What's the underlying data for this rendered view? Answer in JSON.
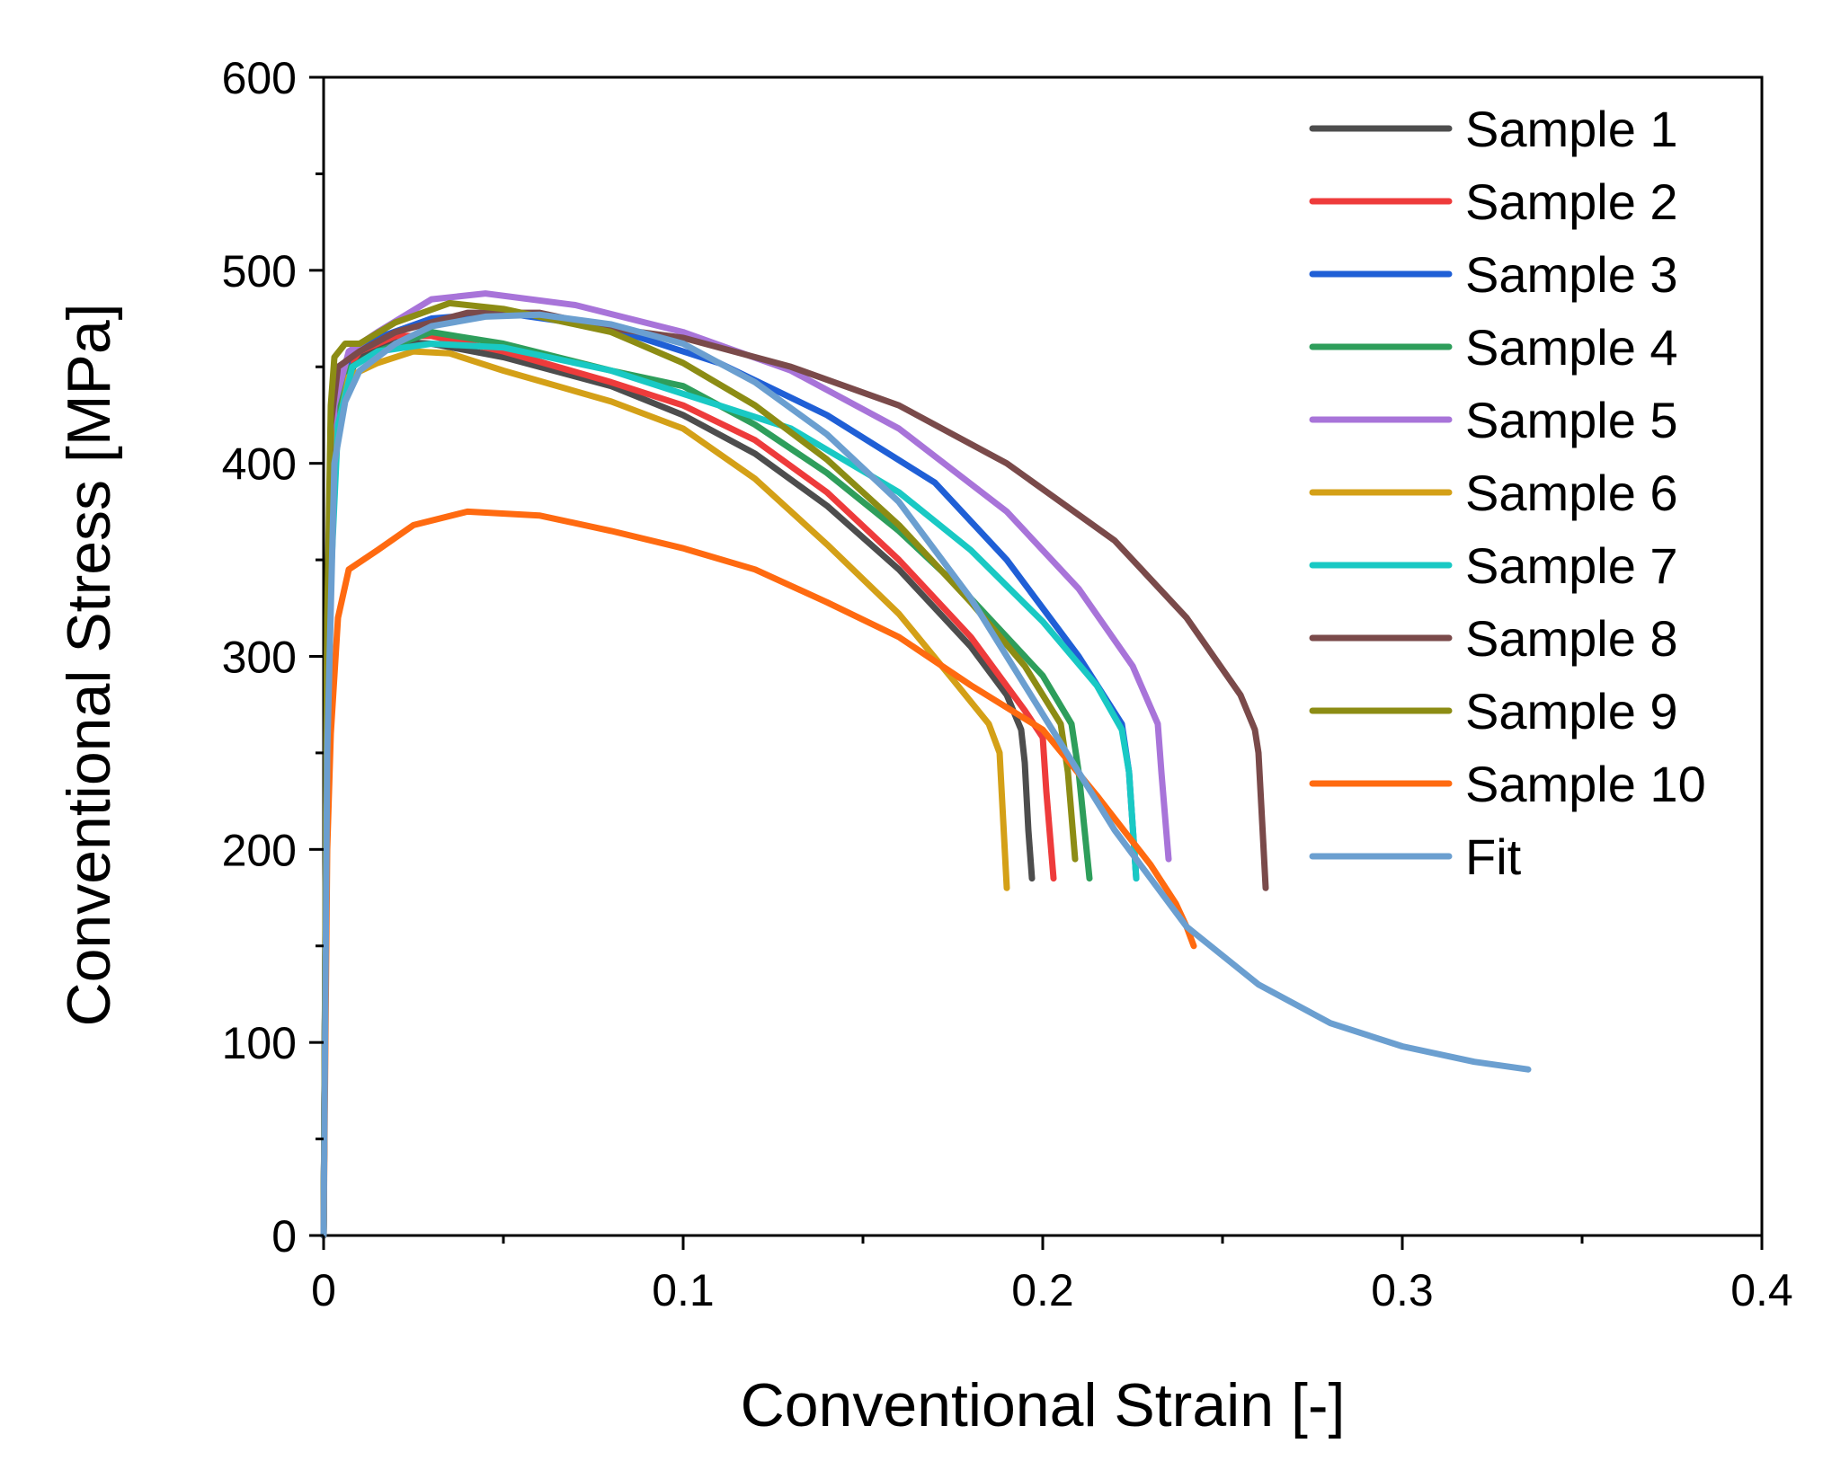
{
  "chart_data": {
    "type": "line",
    "title": "",
    "xlabel": "Conventional Strain [-]",
    "ylabel": "Conventional Stress [MPa]",
    "xlim": [
      0,
      0.4
    ],
    "ylim": [
      0,
      600
    ],
    "xticks": [
      0,
      0.1,
      0.2,
      0.3,
      0.4
    ],
    "xtick_labels": [
      "0",
      "0.1",
      "0.2",
      "0.3",
      "0.4"
    ],
    "yticks": [
      0,
      100,
      200,
      300,
      400,
      500,
      600
    ],
    "ytick_labels": [
      "0",
      "100",
      "200",
      "300",
      "400",
      "500",
      "600"
    ],
    "grid": false,
    "legend_position": "top-right",
    "series": [
      {
        "name": "Sample 1",
        "color": "#4d4d4d",
        "points": [
          [
            0,
            0
          ],
          [
            0.001,
            300
          ],
          [
            0.002,
            400
          ],
          [
            0.005,
            440
          ],
          [
            0.01,
            455
          ],
          [
            0.02,
            463
          ],
          [
            0.03,
            462
          ],
          [
            0.05,
            455
          ],
          [
            0.08,
            440
          ],
          [
            0.1,
            425
          ],
          [
            0.12,
            405
          ],
          [
            0.14,
            378
          ],
          [
            0.16,
            345
          ],
          [
            0.18,
            305
          ],
          [
            0.19,
            280
          ],
          [
            0.194,
            262
          ],
          [
            0.195,
            245
          ],
          [
            0.196,
            210
          ],
          [
            0.197,
            185
          ]
        ]
      },
      {
        "name": "Sample 2",
        "color": "#ee3b3b",
        "points": [
          [
            0,
            0
          ],
          [
            0.001,
            290
          ],
          [
            0.002,
            380
          ],
          [
            0.005,
            445
          ],
          [
            0.01,
            458
          ],
          [
            0.02,
            466
          ],
          [
            0.03,
            466
          ],
          [
            0.05,
            458
          ],
          [
            0.08,
            442
          ],
          [
            0.1,
            430
          ],
          [
            0.12,
            412
          ],
          [
            0.14,
            385
          ],
          [
            0.16,
            350
          ],
          [
            0.18,
            310
          ],
          [
            0.195,
            272
          ],
          [
            0.2,
            258
          ],
          [
            0.201,
            230
          ],
          [
            0.203,
            185
          ]
        ]
      },
      {
        "name": "Sample 3",
        "color": "#1f5fd6",
        "points": [
          [
            0,
            0
          ],
          [
            0.001,
            300
          ],
          [
            0.003,
            420
          ],
          [
            0.007,
            455
          ],
          [
            0.015,
            465
          ],
          [
            0.03,
            475
          ],
          [
            0.05,
            478
          ],
          [
            0.08,
            470
          ],
          [
            0.11,
            452
          ],
          [
            0.14,
            425
          ],
          [
            0.17,
            390
          ],
          [
            0.19,
            350
          ],
          [
            0.21,
            300
          ],
          [
            0.222,
            265
          ],
          [
            0.224,
            240
          ],
          [
            0.226,
            185
          ]
        ]
      },
      {
        "name": "Sample 4",
        "color": "#2e9e5b",
        "points": [
          [
            0,
            0
          ],
          [
            0.001,
            300
          ],
          [
            0.003,
            410
          ],
          [
            0.006,
            448
          ],
          [
            0.015,
            458
          ],
          [
            0.03,
            468
          ],
          [
            0.05,
            462
          ],
          [
            0.08,
            448
          ],
          [
            0.1,
            440
          ],
          [
            0.12,
            420
          ],
          [
            0.14,
            395
          ],
          [
            0.16,
            365
          ],
          [
            0.18,
            330
          ],
          [
            0.2,
            290
          ],
          [
            0.208,
            265
          ],
          [
            0.21,
            240
          ],
          [
            0.213,
            185
          ]
        ]
      },
      {
        "name": "Sample 5",
        "color": "#a874d9",
        "points": [
          [
            0,
            0
          ],
          [
            0.001,
            310
          ],
          [
            0.003,
            430
          ],
          [
            0.007,
            458
          ],
          [
            0.015,
            468
          ],
          [
            0.03,
            485
          ],
          [
            0.045,
            488
          ],
          [
            0.07,
            482
          ],
          [
            0.1,
            468
          ],
          [
            0.13,
            448
          ],
          [
            0.16,
            418
          ],
          [
            0.19,
            375
          ],
          [
            0.21,
            335
          ],
          [
            0.225,
            295
          ],
          [
            0.232,
            265
          ],
          [
            0.233,
            240
          ],
          [
            0.235,
            195
          ]
        ]
      },
      {
        "name": "Sample 6",
        "color": "#d4a017",
        "points": [
          [
            0,
            0
          ],
          [
            0.001,
            300
          ],
          [
            0.003,
            410
          ],
          [
            0.007,
            445
          ],
          [
            0.015,
            452
          ],
          [
            0.025,
            458
          ],
          [
            0.035,
            457
          ],
          [
            0.05,
            448
          ],
          [
            0.08,
            432
          ],
          [
            0.1,
            418
          ],
          [
            0.12,
            392
          ],
          [
            0.14,
            358
          ],
          [
            0.16,
            322
          ],
          [
            0.175,
            288
          ],
          [
            0.185,
            265
          ],
          [
            0.188,
            250
          ],
          [
            0.189,
            215
          ],
          [
            0.19,
            180
          ]
        ]
      },
      {
        "name": "Sample 7",
        "color": "#19c9c4",
        "points": [
          [
            0,
            0
          ],
          [
            0.001,
            300
          ],
          [
            0.004,
            420
          ],
          [
            0.008,
            450
          ],
          [
            0.015,
            458
          ],
          [
            0.03,
            462
          ],
          [
            0.05,
            460
          ],
          [
            0.08,
            448
          ],
          [
            0.1,
            436
          ],
          [
            0.13,
            418
          ],
          [
            0.16,
            385
          ],
          [
            0.18,
            355
          ],
          [
            0.2,
            318
          ],
          [
            0.215,
            285
          ],
          [
            0.222,
            262
          ],
          [
            0.224,
            240
          ],
          [
            0.226,
            185
          ]
        ]
      },
      {
        "name": "Sample 8",
        "color": "#7a4a4a",
        "points": [
          [
            0,
            0
          ],
          [
            0.001,
            310
          ],
          [
            0.002,
            420
          ],
          [
            0.004,
            450
          ],
          [
            0.01,
            458
          ],
          [
            0.02,
            468
          ],
          [
            0.04,
            478
          ],
          [
            0.06,
            478
          ],
          [
            0.08,
            470
          ],
          [
            0.1,
            465
          ],
          [
            0.13,
            450
          ],
          [
            0.16,
            430
          ],
          [
            0.19,
            400
          ],
          [
            0.22,
            360
          ],
          [
            0.24,
            320
          ],
          [
            0.255,
            280
          ],
          [
            0.259,
            262
          ],
          [
            0.26,
            250
          ],
          [
            0.261,
            215
          ],
          [
            0.262,
            180
          ]
        ]
      },
      {
        "name": "Sample 9",
        "color": "#8c8c14",
        "points": [
          [
            0,
            0
          ],
          [
            0.001,
            320
          ],
          [
            0.002,
            430
          ],
          [
            0.003,
            455
          ],
          [
            0.006,
            462
          ],
          [
            0.01,
            462
          ],
          [
            0.02,
            473
          ],
          [
            0.035,
            483
          ],
          [
            0.05,
            480
          ],
          [
            0.08,
            468
          ],
          [
            0.1,
            452
          ],
          [
            0.12,
            430
          ],
          [
            0.14,
            402
          ],
          [
            0.16,
            368
          ],
          [
            0.18,
            328
          ],
          [
            0.195,
            295
          ],
          [
            0.205,
            265
          ],
          [
            0.207,
            240
          ],
          [
            0.209,
            195
          ]
        ]
      },
      {
        "name": "Sample 10",
        "color": "#ff6a10",
        "points": [
          [
            0,
            0
          ],
          [
            0.001,
            200
          ],
          [
            0.002,
            260
          ],
          [
            0.004,
            320
          ],
          [
            0.007,
            345
          ],
          [
            0.015,
            355
          ],
          [
            0.025,
            368
          ],
          [
            0.04,
            375
          ],
          [
            0.06,
            373
          ],
          [
            0.08,
            365
          ],
          [
            0.1,
            356
          ],
          [
            0.12,
            345
          ],
          [
            0.14,
            328
          ],
          [
            0.16,
            310
          ],
          [
            0.18,
            285
          ],
          [
            0.2,
            262
          ],
          [
            0.215,
            228
          ],
          [
            0.23,
            192
          ],
          [
            0.237,
            172
          ],
          [
            0.24,
            160
          ],
          [
            0.242,
            150
          ]
        ]
      },
      {
        "name": "Fit",
        "color": "#6b9fd0",
        "points": [
          [
            0,
            0
          ],
          [
            0.001,
            250
          ],
          [
            0.003,
            400
          ],
          [
            0.006,
            432
          ],
          [
            0.01,
            448
          ],
          [
            0.02,
            462
          ],
          [
            0.03,
            471
          ],
          [
            0.045,
            476
          ],
          [
            0.06,
            477
          ],
          [
            0.08,
            472
          ],
          [
            0.1,
            462
          ],
          [
            0.12,
            442
          ],
          [
            0.14,
            415
          ],
          [
            0.16,
            380
          ],
          [
            0.18,
            330
          ],
          [
            0.2,
            270
          ],
          [
            0.22,
            210
          ],
          [
            0.24,
            160
          ],
          [
            0.26,
            130
          ],
          [
            0.28,
            110
          ],
          [
            0.3,
            98
          ],
          [
            0.32,
            90
          ],
          [
            0.335,
            86
          ]
        ]
      }
    ]
  }
}
